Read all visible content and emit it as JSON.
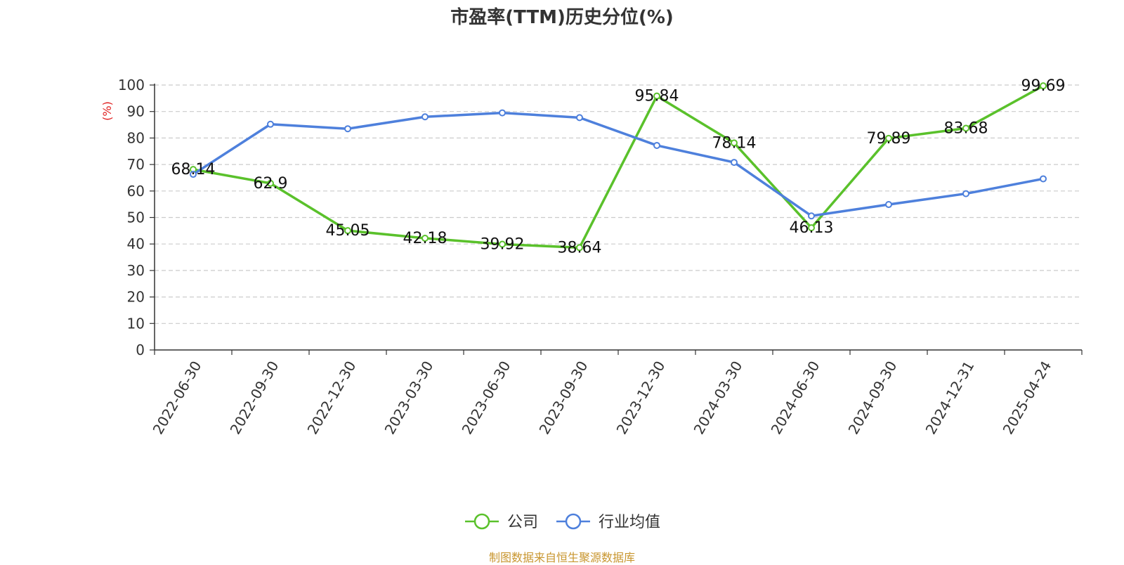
{
  "chart_data": {
    "type": "line",
    "title": "市盈率(TTM)历史分位(%)",
    "ylabel": "(%)",
    "ylim": [
      0,
      100
    ],
    "yticks": [
      0,
      10,
      20,
      30,
      40,
      50,
      60,
      70,
      80,
      90,
      100
    ],
    "grid": true,
    "legend_position": "bottom",
    "categories": [
      "2022-06-30",
      "2022-09-30",
      "2022-12-30",
      "2023-03-30",
      "2023-06-30",
      "2023-09-30",
      "2023-12-30",
      "2024-03-30",
      "2024-06-30",
      "2024-09-30",
      "2024-12-31",
      "2025-04-24"
    ],
    "series": [
      {
        "name": "公司",
        "color": "#5ac12b",
        "values": [
          68.14,
          62.9,
          45.05,
          42.18,
          39.92,
          38.64,
          95.84,
          78.14,
          46.13,
          79.89,
          83.68,
          99.69
        ],
        "labels": [
          "68.14",
          "62.9",
          "45.05",
          "42.18",
          "39.92",
          "38.64",
          "95.84",
          "78.14",
          "46.13",
          "79.89",
          "83.68",
          "99.69"
        ]
      },
      {
        "name": "行业均值",
        "color": "#4e80dc",
        "values": [
          66.3,
          85.2,
          83.5,
          88.0,
          89.5,
          87.7,
          77.2,
          70.8,
          50.6,
          54.9,
          59.0,
          64.6
        ]
      }
    ]
  },
  "footer": {
    "source": "制图数据来自恒生聚源数据库"
  }
}
